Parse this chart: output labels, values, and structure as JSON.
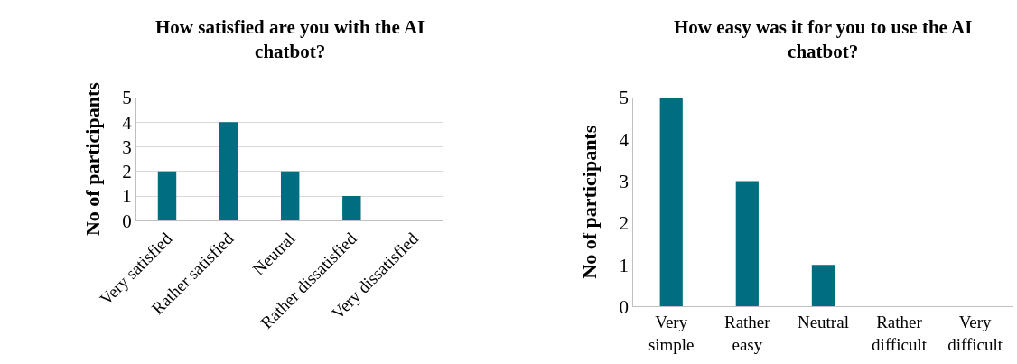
{
  "chart_data": [
    {
      "type": "bar",
      "title": "How satisfied are you with the AI chatbot?",
      "ylabel": "No of participants",
      "categories": [
        "Very satisfied",
        "Rather satisfied",
        "Neutral",
        "Rather dissatisfied",
        "Very dissatisfied"
      ],
      "values": [
        2,
        4,
        2,
        1,
        0
      ],
      "color": "#006d80",
      "ylim": [
        0,
        5
      ],
      "yticks": [
        0,
        1,
        2,
        3,
        4,
        5
      ],
      "grid": "y"
    },
    {
      "type": "bar",
      "title": "How easy was it for you to use the AI chatbot?",
      "ylabel": "No of participants",
      "categories": [
        "Very simple",
        "Rather easy",
        "Neutral",
        "Rather difficult",
        "Very difficult"
      ],
      "values": [
        5,
        3,
        1,
        0,
        0
      ],
      "color": "#006d80",
      "ylim": [
        0,
        5
      ],
      "yticks": [
        0,
        1,
        2,
        3,
        4,
        5
      ],
      "grid": false
    }
  ]
}
